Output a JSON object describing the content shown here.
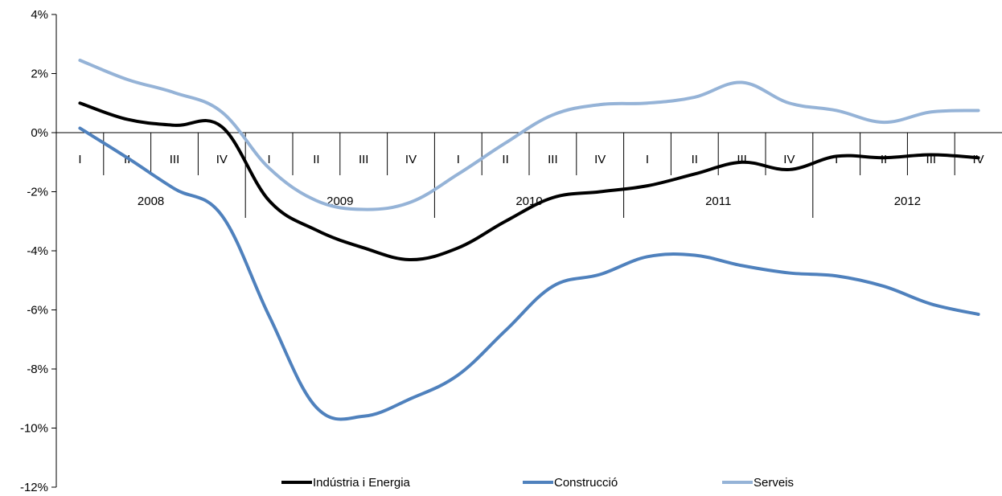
{
  "chart_data": {
    "type": "line",
    "title": "",
    "xlabel": "",
    "ylabel": "",
    "ylim": [
      -12,
      4
    ],
    "y_ticks": [
      4,
      2,
      0,
      -2,
      -4,
      -6,
      -8,
      -10,
      -12
    ],
    "y_tick_format": "%",
    "grid": false,
    "legend_position": "bottom",
    "categories": [
      "I",
      "II",
      "III",
      "IV",
      "I",
      "II",
      "III",
      "IV",
      "I",
      "II",
      "III",
      "IV",
      "I",
      "II",
      "III",
      "IV",
      "I",
      "II",
      "III",
      "IV"
    ],
    "years": [
      {
        "label": "2008"
      },
      {
        "label": "2009"
      },
      {
        "label": "2010"
      },
      {
        "label": "2011"
      },
      {
        "label": "2012"
      }
    ],
    "series": [
      {
        "name": "Indústria i Energia",
        "color": "#000000",
        "values": [
          1.0,
          0.45,
          0.25,
          0.2,
          -2.3,
          -3.3,
          -3.9,
          -4.3,
          -3.9,
          -3.0,
          -2.2,
          -2.0,
          -1.8,
          -1.4,
          -1.0,
          -1.25,
          -0.8,
          -0.85,
          -0.75,
          -0.85
        ]
      },
      {
        "name": "Construcció",
        "color": "#4f81bd",
        "values": [
          0.15,
          -0.85,
          -1.9,
          -2.8,
          -6.2,
          -9.3,
          -9.6,
          -9.0,
          -8.2,
          -6.7,
          -5.2,
          -4.8,
          -4.2,
          -4.15,
          -4.5,
          -4.75,
          -4.85,
          -5.2,
          -5.8,
          -6.15
        ]
      },
      {
        "name": "Serveis",
        "color": "#95b3d7",
        "values": [
          2.45,
          1.8,
          1.35,
          0.7,
          -1.2,
          -2.3,
          -2.6,
          -2.35,
          -1.4,
          -0.35,
          0.6,
          0.95,
          1.0,
          1.2,
          1.7,
          1.0,
          0.75,
          0.35,
          0.7,
          0.75
        ]
      }
    ]
  }
}
